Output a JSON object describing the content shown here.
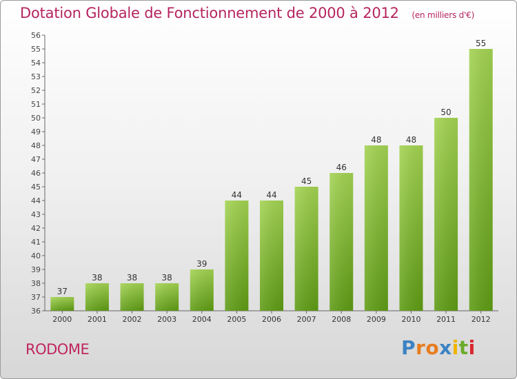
{
  "header": {
    "title": "Dotation Globale de Fonctionnement de 2000 à 2012",
    "subtitle": "(en milliers d'€)"
  },
  "footer": {
    "commune": "RODOME",
    "brand": "Proxiti"
  },
  "colors": {
    "title": "#b5245f",
    "bar_top": "#a3d352",
    "bar_bottom": "#5e9b14",
    "logo_letters": [
      "#3d83c4",
      "#e87c1e",
      "#e87c1e",
      "#3d83c4",
      "#f0b400",
      "#6aab2a",
      "#d9262e"
    ]
  },
  "chart_data": {
    "type": "bar",
    "categories": [
      "2000",
      "2001",
      "2002",
      "2003",
      "2004",
      "2005",
      "2006",
      "2007",
      "2008",
      "2009",
      "2010",
      "2011",
      "2012"
    ],
    "values": [
      37,
      38,
      38,
      38,
      39,
      44,
      44,
      45,
      46,
      48,
      48,
      50,
      55
    ],
    "ylim": [
      36,
      56
    ],
    "yticks": [
      36,
      37,
      38,
      39,
      40,
      41,
      42,
      43,
      44,
      45,
      46,
      47,
      48,
      49,
      50,
      51,
      52,
      53,
      54,
      55,
      56
    ],
    "grid": false,
    "legend": "none"
  }
}
